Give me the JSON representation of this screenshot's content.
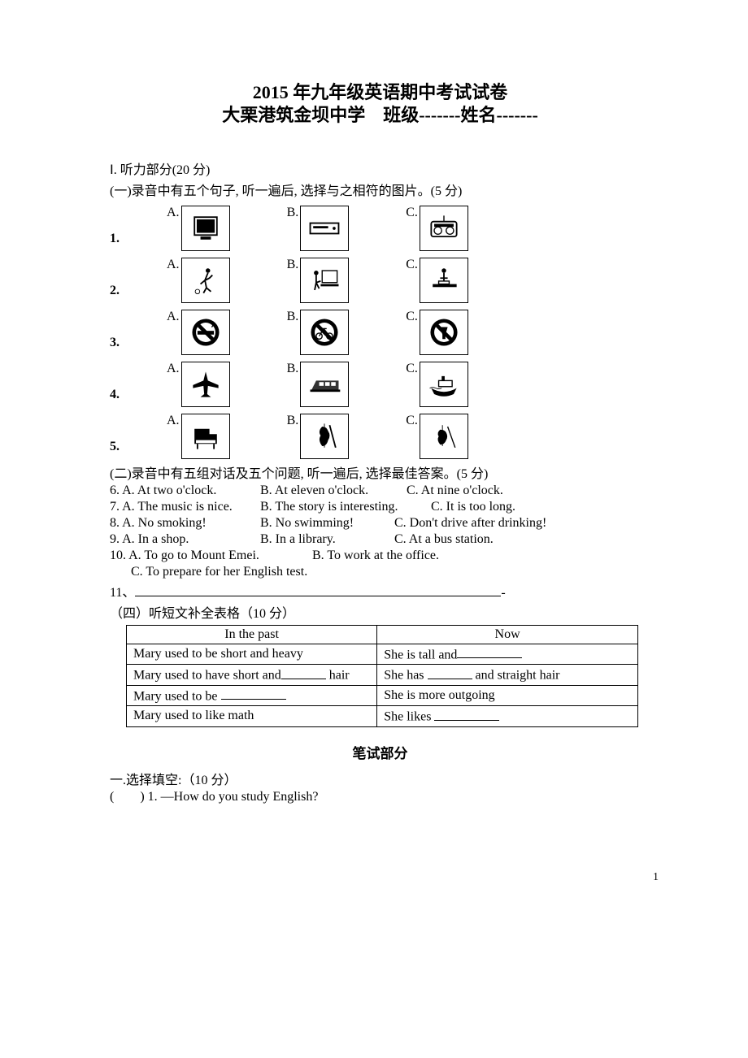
{
  "title_line1": "2015 年九年级英语期中考试试卷",
  "title_line2_pre": "大栗港筑金坝中学",
  "title_line2_gap": "    ",
  "title_line2_class": "班级-------姓名-------",
  "listening_head": "Ⅰ. 听力部分(20 分)",
  "part1_head": "(一)录音中有五个句子, 听一遍后, 选择与之相符的图片。(5 分)",
  "pic_questions": [
    {
      "num": "1.",
      "opts": [
        "A.",
        "B.",
        "C."
      ],
      "icons": [
        "tv",
        "vcr",
        "radio"
      ]
    },
    {
      "num": "2.",
      "opts": [
        "A.",
        "B.",
        "C."
      ],
      "icons": [
        "run",
        "computer",
        "read"
      ]
    },
    {
      "num": "3.",
      "opts": [
        "A.",
        "B.",
        "C."
      ],
      "icons": [
        "nosmoke",
        "nobike",
        "nodrink"
      ]
    },
    {
      "num": "4.",
      "opts": [
        "A.",
        "B.",
        "C."
      ],
      "icons": [
        "plane",
        "train",
        "ship"
      ]
    },
    {
      "num": "5.",
      "opts": [
        "A.",
        "B.",
        "C."
      ],
      "icons": [
        "piano",
        "cello",
        "violin"
      ]
    }
  ],
  "part2_head": "(二)录音中有五组对话及五个问题, 听一遍后, 选择最佳答案。(5 分)",
  "text_questions": [
    {
      "n": "6.",
      "a": "A. At two o'clock.",
      "aw": 185,
      "b": "B. At eleven o'clock.",
      "bw": 180,
      "c": "C. At nine o'clock."
    },
    {
      "n": "7.",
      "a": "A. The music is nice.",
      "aw": 185,
      "b": "B. The story is interesting.",
      "bw": 210,
      "c": "C. It is too long."
    },
    {
      "n": "8.",
      "a": "A. No smoking!",
      "aw": 185,
      "b": "B. No swimming!",
      "bw": 165,
      "c": "C. Don't drive after drinking!"
    },
    {
      "n": "9.",
      "a": "A. In a shop.",
      "aw": 185,
      "b": "B. In a library.",
      "bw": 165,
      "c": "C. At a bus station."
    }
  ],
  "q10_line1_a": "10. A. To go to Mount Emei.",
  "q10_line1_b": "B. To work at the office.",
  "q10_line2": "C. To prepare for her English test.",
  "q11_label": "11、",
  "part4_head": "（四）听短文补全表格（10 分）",
  "table": {
    "headers": [
      "In the past",
      "Now"
    ],
    "rows": [
      {
        "l": "Mary used to be short and heavy",
        "r_pre": "She is tall and",
        "r_blank_w": 80
      },
      {
        "l_pre": "Mary used to have short and",
        "l_blank_w": 55,
        "l_post": "hair",
        "r_pre": "She has ",
        "r_blank_w": 55,
        "r_post": " and straight hair"
      },
      {
        "l_pre": "Mary used to be ",
        "l_blank_w": 80,
        "r": "She is more outgoing"
      },
      {
        "l": "Mary used to like math",
        "r_pre": "She likes ",
        "r_blank_w": 80
      }
    ]
  },
  "written_head": "笔试部分",
  "part_choice_head": "一.选择填空:（10 分）",
  "choice_q1": "1. —How do you study English?",
  "paren_blank": "(        ) ",
  "page_number": "1",
  "colors": {
    "text": "#000000",
    "bg": "#ffffff",
    "border": "#000000"
  }
}
